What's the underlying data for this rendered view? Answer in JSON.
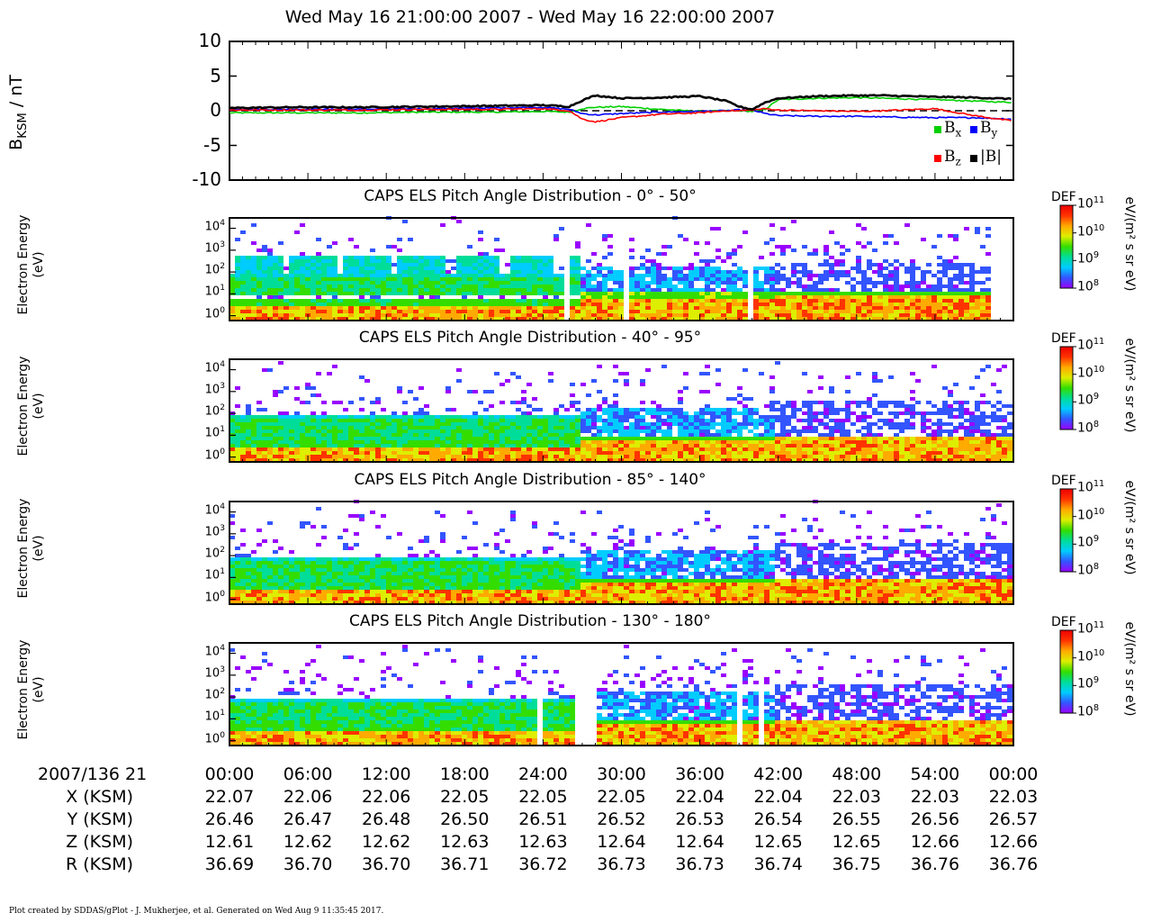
{
  "header": {
    "title": "Wed May 16 21:00:00 2007 - Wed May 16 22:00:00 2007"
  },
  "footer": {
    "credit": "Plot created by SDDAS/gPlot - J. Mukherjee, et al.  Generated on Wed Aug 9 11:35:45 2017."
  },
  "colors": {
    "bx": "#00d000",
    "by": "#0000ff",
    "bz": "#ff0000",
    "bmag": "#000000",
    "colormap": [
      "#ffffff",
      "#9900ff",
      "#3355ff",
      "#00ccff",
      "#00dd99",
      "#33dd00",
      "#ddee00",
      "#ffaa00",
      "#ff3300",
      "#ee0000"
    ]
  },
  "chart_data": [
    {
      "type": "line",
      "panel": "magnetometer",
      "ylabel": "B",
      "ylabel_sub": "KSM",
      "ylabel_unit": " / nT",
      "ylim": [
        -10,
        10
      ],
      "yticks": [
        "10",
        "5",
        "0",
        "-5",
        "-10"
      ],
      "ytick_values": [
        10,
        5,
        0,
        -5,
        -10
      ],
      "xlim_minutes": [
        0,
        60
      ],
      "reference_line": 0,
      "legend": [
        {
          "name": "B",
          "sub": "x",
          "color": "#00d000"
        },
        {
          "name": "B",
          "sub": "y",
          "color": "#0000ff"
        },
        {
          "name": "B",
          "sub": "z",
          "color": "#ff0000"
        },
        {
          "name": "|B|",
          "sub": "",
          "color": "#000000"
        }
      ],
      "series": [
        {
          "key": "bx",
          "x_minutes": [
            0,
            5,
            10,
            15,
            20,
            24,
            26,
            27,
            28,
            30,
            33,
            36,
            38,
            39,
            40,
            41,
            42,
            45,
            48,
            50,
            54,
            57,
            60
          ],
          "values": [
            -0.3,
            -0.3,
            -0.3,
            -0.2,
            -0.2,
            -0.1,
            -0.2,
            0.3,
            0.5,
            0.6,
            0.2,
            -0.1,
            0.0,
            0.0,
            -0.1,
            0.2,
            1.6,
            1.8,
            1.9,
            1.8,
            1.6,
            1.4,
            1.2
          ]
        },
        {
          "key": "by",
          "x_minutes": [
            0,
            5,
            10,
            15,
            20,
            24,
            26,
            27,
            28,
            30,
            33,
            36,
            38,
            39,
            40,
            41,
            42,
            45,
            48,
            50,
            54,
            57,
            60
          ],
          "values": [
            0.2,
            0.2,
            0.2,
            0.3,
            0.4,
            0.5,
            0.2,
            -0.4,
            -0.6,
            -0.4,
            -0.2,
            -0.1,
            0.0,
            0.1,
            0.1,
            -0.4,
            -0.7,
            -0.8,
            -0.8,
            -0.9,
            -1.0,
            -1.0,
            -1.2
          ]
        },
        {
          "key": "bz",
          "x_minutes": [
            0,
            5,
            10,
            15,
            20,
            24,
            26,
            27,
            28,
            30,
            33,
            36,
            38,
            39,
            40,
            41,
            42,
            45,
            48,
            50,
            54,
            57,
            60
          ],
          "values": [
            0.1,
            0.1,
            0.1,
            0.2,
            0.2,
            0.3,
            0.0,
            -1.2,
            -1.6,
            -1.0,
            -0.5,
            -0.3,
            0.0,
            0.0,
            0.1,
            0.3,
            0.1,
            0.0,
            -0.1,
            0.0,
            0.3,
            -0.7,
            -1.5
          ]
        },
        {
          "key": "bmag",
          "x_minutes": [
            0,
            5,
            10,
            15,
            20,
            24,
            26,
            27,
            28,
            29,
            30,
            33,
            36,
            38,
            39,
            40,
            41,
            42,
            45,
            48,
            50,
            54,
            57,
            60
          ],
          "values": [
            0.4,
            0.5,
            0.5,
            0.6,
            0.7,
            0.8,
            0.6,
            1.5,
            2.2,
            2.0,
            1.8,
            1.9,
            2.1,
            1.4,
            0.6,
            0.2,
            1.2,
            1.8,
            2.1,
            2.2,
            2.2,
            2.0,
            1.9,
            1.7
          ]
        }
      ]
    },
    {
      "type": "heatmap",
      "panel": "pad1",
      "title": "CAPS ELS Pitch Angle Distribution - 0° - 50°",
      "ylabel": "Electron Energy",
      "ylabel2": "(eV)",
      "yscale": "log",
      "y_range_ev": [
        0.6,
        30000
      ],
      "yticks": [
        {
          "b": "10",
          "e": "4"
        },
        {
          "b": "10",
          "e": "3"
        },
        {
          "b": "10",
          "e": "2"
        },
        {
          "b": "10",
          "e": "1"
        },
        {
          "b": "10",
          "e": "0"
        }
      ],
      "ytick_exps": [
        4,
        3,
        2,
        1,
        0
      ],
      "colorbar": {
        "label": "DEF",
        "unit": "eV/(m² s sr eV)",
        "scale": "log",
        "range": [
          100000000.0,
          100000000000.0
        ],
        "ticks": [
          {
            "b": "10",
            "e": "11"
          },
          {
            "b": "10",
            "e": "10"
          },
          {
            "b": "10",
            "e": "9"
          },
          {
            "b": "10",
            "e": "8"
          }
        ]
      },
      "gaps_minutes": [
        [
          25.5,
          25.9
        ],
        [
          26.3,
          26.6
        ],
        [
          29.2,
          29.4
        ],
        [
          30.4,
          30.6
        ],
        [
          39.2,
          39.3
        ],
        [
          39.8,
          40.2
        ],
        [
          57.0,
          57.2
        ],
        [
          58.5,
          60
        ]
      ],
      "cutoff_minutes": 58.5
    },
    {
      "type": "heatmap",
      "panel": "pad2",
      "title": "CAPS ELS Pitch Angle Distribution - 40° - 95°",
      "ylabel": "Electron Energy",
      "ylabel2": "(eV)",
      "yscale": "log",
      "y_range_ev": [
        0.6,
        30000
      ],
      "yticks": [
        {
          "b": "10",
          "e": "4"
        },
        {
          "b": "10",
          "e": "3"
        },
        {
          "b": "10",
          "e": "2"
        },
        {
          "b": "10",
          "e": "1"
        },
        {
          "b": "10",
          "e": "0"
        }
      ],
      "ytick_exps": [
        4,
        3,
        2,
        1,
        0
      ],
      "colorbar": {
        "label": "DEF",
        "unit": "eV/(m² s sr eV)",
        "scale": "log",
        "range": [
          100000000.0,
          100000000000.0
        ],
        "ticks": [
          {
            "b": "10",
            "e": "11"
          },
          {
            "b": "10",
            "e": "10"
          },
          {
            "b": "10",
            "e": "9"
          },
          {
            "b": "10",
            "e": "8"
          }
        ]
      },
      "gaps_minutes": [],
      "cutoff_minutes": 60
    },
    {
      "type": "heatmap",
      "panel": "pad3",
      "title": "CAPS ELS Pitch Angle Distribution - 85° - 140°",
      "ylabel": "Electron Energy",
      "ylabel2": "(eV)",
      "yscale": "log",
      "y_range_ev": [
        0.6,
        30000
      ],
      "yticks": [
        {
          "b": "10",
          "e": "4"
        },
        {
          "b": "10",
          "e": "3"
        },
        {
          "b": "10",
          "e": "2"
        },
        {
          "b": "10",
          "e": "1"
        },
        {
          "b": "10",
          "e": "0"
        }
      ],
      "ytick_exps": [
        4,
        3,
        2,
        1,
        0
      ],
      "colorbar": {
        "label": "DEF",
        "unit": "eV/(m² s sr eV)",
        "scale": "log",
        "range": [
          100000000.0,
          100000000000.0
        ],
        "ticks": [
          {
            "b": "10",
            "e": "11"
          },
          {
            "b": "10",
            "e": "10"
          },
          {
            "b": "10",
            "e": "9"
          },
          {
            "b": "10",
            "e": "8"
          }
        ]
      },
      "gaps_minutes": [],
      "cutoff_minutes": 60
    },
    {
      "type": "heatmap",
      "panel": "pad4",
      "title": "CAPS ELS Pitch Angle Distribution - 130° - 180°",
      "ylabel": "Electron Energy",
      "ylabel2": "(eV)",
      "yscale": "log",
      "y_range_ev": [
        0.6,
        30000
      ],
      "yticks": [
        {
          "b": "10",
          "e": "4"
        },
        {
          "b": "10",
          "e": "3"
        },
        {
          "b": "10",
          "e": "2"
        },
        {
          "b": "10",
          "e": "1"
        },
        {
          "b": "10",
          "e": "0"
        }
      ],
      "ytick_exps": [
        4,
        3,
        2,
        1,
        0
      ],
      "colorbar": {
        "label": "DEF",
        "unit": "eV/(m² s sr eV)",
        "scale": "log",
        "range": [
          100000000.0,
          100000000000.0
        ],
        "ticks": [
          {
            "b": "10",
            "e": "11"
          },
          {
            "b": "10",
            "e": "10"
          },
          {
            "b": "10",
            "e": "9"
          },
          {
            "b": "10",
            "e": "8"
          }
        ]
      },
      "gaps_minutes": [
        [
          1.6,
          1.8
        ],
        [
          23.5,
          24.2
        ],
        [
          26.5,
          28.3
        ],
        [
          39.0,
          39.5
        ],
        [
          40.0,
          40.3
        ],
        [
          40.7,
          40.9
        ]
      ],
      "cutoff_minutes": 60
    }
  ],
  "ephemeris": {
    "date_label": "2007/136 21",
    "times": [
      "00:00",
      "06:00",
      "12:00",
      "18:00",
      "24:00",
      "30:00",
      "36:00",
      "42:00",
      "48:00",
      "54:00",
      "00:00"
    ],
    "time_minutes": [
      0,
      6,
      12,
      18,
      24,
      30,
      36,
      42,
      48,
      54,
      60
    ],
    "rows": [
      {
        "label": "X (KSM)",
        "values": [
          "22.07",
          "22.06",
          "22.06",
          "22.05",
          "22.05",
          "22.05",
          "22.04",
          "22.04",
          "22.03",
          "22.03",
          "22.03"
        ]
      },
      {
        "label": "Y (KSM)",
        "values": [
          "26.46",
          "26.47",
          "26.48",
          "26.50",
          "26.51",
          "26.52",
          "26.53",
          "26.54",
          "26.55",
          "26.56",
          "26.57"
        ]
      },
      {
        "label": "Z (KSM)",
        "values": [
          "12.61",
          "12.62",
          "12.62",
          "12.63",
          "12.63",
          "12.64",
          "12.64",
          "12.65",
          "12.65",
          "12.66",
          "12.66"
        ]
      },
      {
        "label": "R (KSM)",
        "values": [
          "36.69",
          "36.70",
          "36.70",
          "36.71",
          "36.72",
          "36.73",
          "36.73",
          "36.74",
          "36.75",
          "36.76",
          "36.76"
        ]
      }
    ]
  }
}
